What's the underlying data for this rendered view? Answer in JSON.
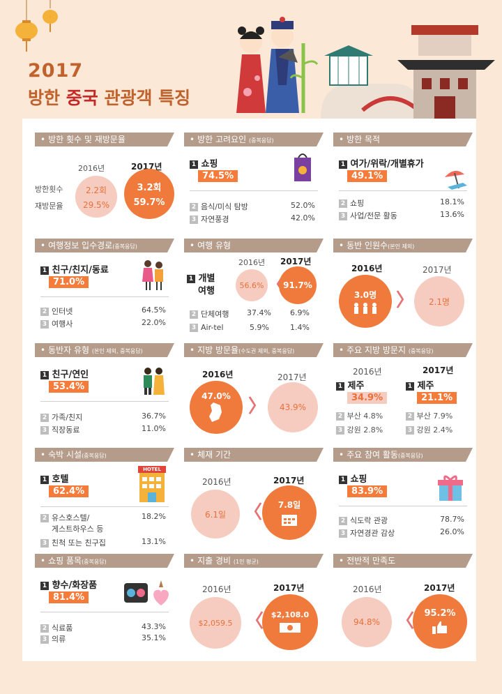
{
  "header": {
    "year": "2017",
    "title_pre": "방한 ",
    "title_hl": "중국",
    "title_post": " 관광객 특징"
  },
  "colors": {
    "orange": "#ef7a3c",
    "light": "#f6ccc0",
    "banner": "#b49b8a",
    "title": "#c0622c"
  },
  "cards": {
    "visits": {
      "banner": "방한 횟수 및 재방문율",
      "y2016": "2016년",
      "y2017": "2017년",
      "label_count": "방한횟수",
      "label_revisit": "재방문율",
      "v2016_count": "2.2회",
      "v2016_revisit": "29.5%",
      "v2017_count": "3.2회",
      "v2017_revisit": "59.7%"
    },
    "factor": {
      "banner": "방한 고려요인",
      "note": "(중복응답)",
      "n1": "1",
      "top": "쇼핑",
      "top_val": "74.5%",
      "rows": [
        {
          "n": "2",
          "label": "음식/미식 탐방",
          "value": "52.0%"
        },
        {
          "n": "3",
          "label": "자연풍경",
          "value": "42.0%"
        }
      ],
      "icon": "shopping-bag-icon"
    },
    "purpose": {
      "banner": "방한 목적",
      "n1": "1",
      "top": "여가/위락/개별휴가",
      "top_val": "49.1%",
      "rows": [
        {
          "n": "2",
          "label": "쇼핑",
          "value": "18.1%"
        },
        {
          "n": "3",
          "label": "사업/전문 활동",
          "value": "13.6%"
        }
      ],
      "icon": "beach-umbrella-icon"
    },
    "info": {
      "banner": "여행정보 입수경로",
      "note": "(중복응답)",
      "n1": "1",
      "top": "친구/친지/동료",
      "top_val": "71.0%",
      "rows": [
        {
          "n": "2",
          "label": "인터넷",
          "value": "64.5%"
        },
        {
          "n": "3",
          "label": "여행사",
          "value": "22.0%"
        }
      ],
      "icon": "friends-icon"
    },
    "type": {
      "banner": "여행 유형",
      "y2016": "2016년",
      "y2017": "2017년",
      "n1": "1",
      "top_line1": "개별",
      "top_line2": "여행",
      "v2016": "56.6%",
      "v2017": "91.7%",
      "rows": [
        {
          "n": "2",
          "label": "단체여행",
          "v2016": "37.4%",
          "v2017": "6.9%"
        },
        {
          "n": "3",
          "label": "Air-tel",
          "v2016": "5.9%",
          "v2017": "1.4%"
        }
      ]
    },
    "companion_count": {
      "banner": "동반 인원수",
      "note": "(본인 제외)",
      "y2016": "2016년",
      "y2017": "2017년",
      "v2016": "3.0명",
      "v2017": "2.1명",
      "icon": "people-icon"
    },
    "companion_type": {
      "banner": "동반자 유형",
      "note": "(본인 제외, 중복응답)",
      "n1": "1",
      "top": "친구/연인",
      "top_val": "53.4%",
      "rows": [
        {
          "n": "2",
          "label": "가족/친지",
          "value": "36.7%"
        },
        {
          "n": "3",
          "label": "직장동료",
          "value": "11.0%"
        }
      ],
      "icon": "couple-icon"
    },
    "regional": {
      "banner": "지방 방문율",
      "note": "(수도권 제외, 중복응답)",
      "y2016": "2016년",
      "y2017": "2017년",
      "v2016": "47.0%",
      "v2017": "43.9%",
      "icon": "korea-map-icon"
    },
    "region_top": {
      "banner": "주요 지방 방문지",
      "note": "(중복응답)",
      "y2016": "2016년",
      "y2017": "2017년",
      "left": {
        "top": "제주",
        "top_val": "34.9%",
        "rows": [
          {
            "n": "2",
            "label": "부산",
            "value": "4.8%"
          },
          {
            "n": "3",
            "label": "강원",
            "value": "2.8%"
          }
        ]
      },
      "right": {
        "top": "제주",
        "top_val": "21.1%",
        "rows": [
          {
            "n": "2",
            "label": "부산",
            "value": "7.9%"
          },
          {
            "n": "3",
            "label": "강원",
            "value": "2.4%"
          }
        ]
      }
    },
    "lodging": {
      "banner": "숙박 시설",
      "note": "(중복응답)",
      "n1": "1",
      "top": "호텔",
      "top_val": "62.4%",
      "row2_line1": "유스호스텔/",
      "row2_line2": "게스트하우스 등",
      "row2_val": "18.2%",
      "row3_label": "친척 또는 친구집",
      "row3_val": "13.1%",
      "icon_text": "HOTEL"
    },
    "stay": {
      "banner": "체재 기간",
      "y2016": "2016년",
      "y2017": "2017년",
      "v2016": "6.1일",
      "v2017": "7.8일",
      "icon": "calendar-icon"
    },
    "activity": {
      "banner": "주요 참여 활동",
      "note": "(중복응답)",
      "n1": "1",
      "top": "쇼핑",
      "top_val": "83.9%",
      "rows": [
        {
          "n": "2",
          "label": "식도락 관광",
          "value": "78.7%"
        },
        {
          "n": "3",
          "label": "자연경관 감상",
          "value": "26.0%"
        }
      ],
      "icon": "gift-box-icon"
    },
    "items": {
      "banner": "쇼핑 품목",
      "note": "(중복응답)",
      "n1": "1",
      "top": "향수/화장품",
      "top_val": "81.4%",
      "rows": [
        {
          "n": "2",
          "label": "식료품",
          "value": "43.3%"
        },
        {
          "n": "3",
          "label": "의류",
          "value": "35.1%"
        }
      ],
      "icon": "cosmetics-icon"
    },
    "spend": {
      "banner": "지출 경비",
      "note": "(1인 평균)",
      "y2016": "2016년",
      "y2017": "2017년",
      "v2016": "$2,059.5",
      "v2017": "$2,108.0",
      "icon": "money-icon"
    },
    "satisfaction": {
      "banner": "전반적 만족도",
      "y2016": "2016년",
      "y2017": "2017년",
      "v2016": "94.8%",
      "v2017": "95.2%",
      "icon": "thumbs-up-icon"
    }
  }
}
